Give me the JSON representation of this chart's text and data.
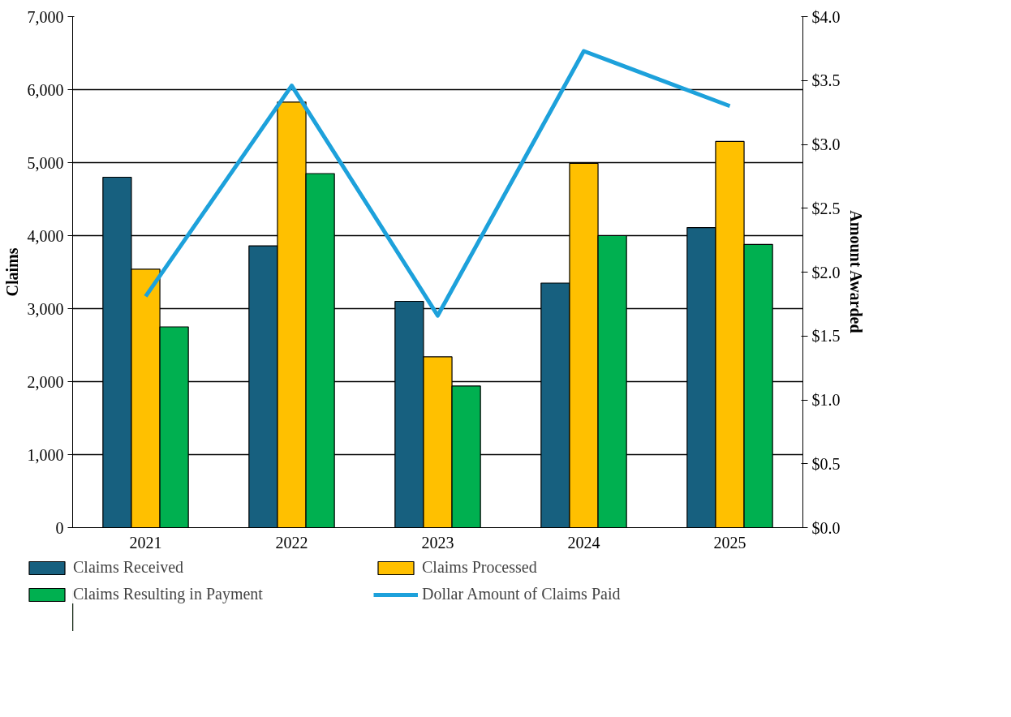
{
  "chart_data": {
    "type": "bar",
    "categories": [
      "2021",
      "2022",
      "2023",
      "2024",
      "2025"
    ],
    "ylabel": "Claims",
    "y2label": "Amount Awarded",
    "series": [
      {
        "name": "Claims Received",
        "color": "#17607f",
        "values": [
          4800,
          3860,
          3100,
          3350,
          4110
        ]
      },
      {
        "name": "Claims Processed",
        "color": "#ffc000",
        "values": [
          3540,
          5830,
          2340,
          4990,
          5290
        ]
      },
      {
        "name": "Claims Resulting in Payment",
        "color": "#00b050",
        "values": [
          2750,
          4850,
          1940,
          4000,
          3880
        ]
      },
      {
        "name": "Dollar Amount of Claims Paid",
        "type": "line",
        "axis": "y2",
        "color": "#1da1db",
        "values": [
          1.81,
          3.46,
          1.66,
          3.73,
          3.3
        ]
      }
    ],
    "ylim": [
      0,
      7000
    ],
    "yticks": [
      {
        "value": 0,
        "label": "0"
      },
      {
        "value": 1000,
        "label": "1,000"
      },
      {
        "value": 2000,
        "label": "2,000"
      },
      {
        "value": 3000,
        "label": "3,000"
      },
      {
        "value": 4000,
        "label": "4,000"
      },
      {
        "value": 5000,
        "label": "5,000"
      },
      {
        "value": 6000,
        "label": "6,000"
      },
      {
        "value": 7000,
        "label": "7,000"
      }
    ],
    "y2lim": [
      0,
      4
    ],
    "y2ticks": [
      {
        "value": 0,
        "label": "$0.0"
      },
      {
        "value": 0.5,
        "label": "$0.5"
      },
      {
        "value": 1,
        "label": "$1.0"
      },
      {
        "value": 1.5,
        "label": "$1.5"
      },
      {
        "value": 2,
        "label": "$2.0"
      },
      {
        "value": 2.5,
        "label": "$2.5"
      },
      {
        "value": 3,
        "label": "$3.0"
      },
      {
        "value": 3.5,
        "label": "$3.5"
      },
      {
        "value": 4,
        "label": "$4.0"
      }
    ],
    "grid": "y",
    "legend": "bottom"
  }
}
